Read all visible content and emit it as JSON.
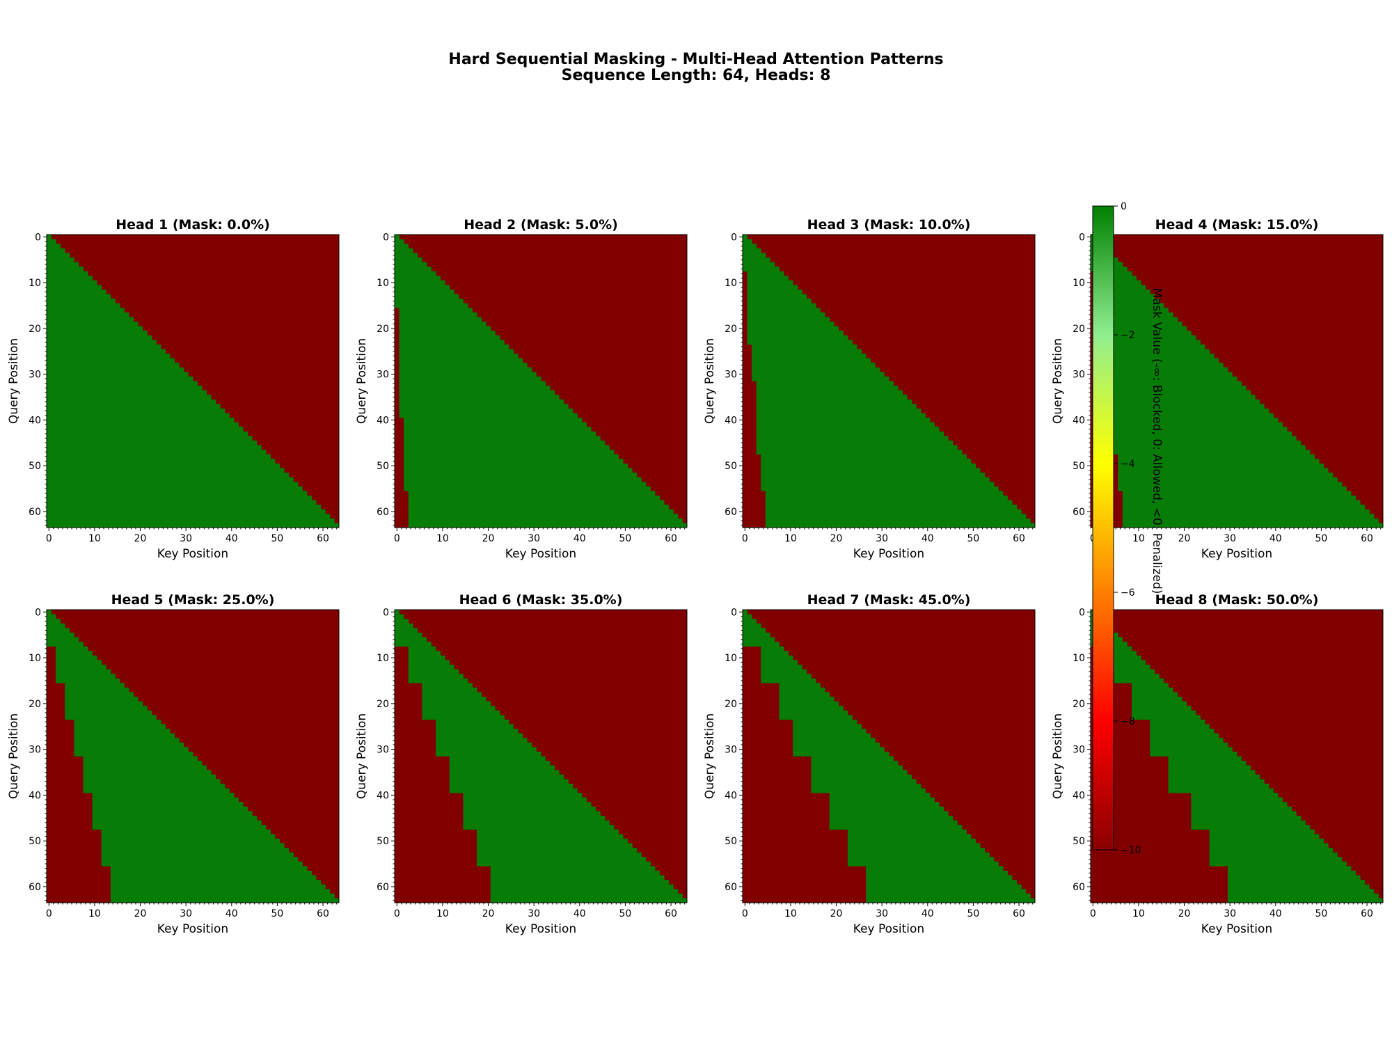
{
  "figure": {
    "title_line1": "Hard Sequential Masking - Multi-Head Attention Patterns",
    "title_line2": "Sequence Length: 64, Heads: 8"
  },
  "colorbar": {
    "label": "Mask Value (-∞: Blocked, 0: Allowed, <0: Penalized)",
    "ticks": [
      0,
      -2,
      -4,
      -6,
      -8,
      -10
    ],
    "tick_labels": [
      "0",
      "−2",
      "−4",
      "−6",
      "−8",
      "−10"
    ],
    "range": [
      -10,
      0
    ],
    "colors": [
      "#8b0000",
      "#ff0000",
      "#ff7f00",
      "#ffff00",
      "#90ee90",
      "#008000"
    ]
  },
  "colors": {
    "allowed": "#077c07",
    "blocked": "#800000"
  },
  "chart_data": {
    "type": "heatmap",
    "seq_len": 64,
    "x_ticks": [
      0,
      10,
      20,
      30,
      40,
      50,
      60
    ],
    "y_ticks": [
      0,
      10,
      20,
      30,
      40,
      50,
      60
    ],
    "xlabel": "Key Position",
    "ylabel": "Query Position",
    "note_on_encoding": "cell (query q, key k) is allowed when k <= q and k >= window_start[block(q)]; blocks of 8 query rows",
    "heads": [
      {
        "title": "Head 1 (Mask: 0.0%)",
        "mask_rate": 0.0,
        "window_start": [
          0,
          0,
          0,
          0,
          0,
          0,
          0,
          0
        ]
      },
      {
        "title": "Head 2 (Mask: 5.0%)",
        "mask_rate": 0.05,
        "window_start": [
          0,
          0,
          1,
          1,
          1,
          2,
          2,
          3
        ]
      },
      {
        "title": "Head 3 (Mask: 10.0%)",
        "mask_rate": 0.1,
        "window_start": [
          0,
          1,
          1,
          2,
          3,
          3,
          4,
          5
        ]
      },
      {
        "title": "Head 4 (Mask: 15.0%)",
        "mask_rate": 0.15,
        "window_start": [
          0,
          1,
          2,
          3,
          4,
          5,
          6,
          7
        ]
      },
      {
        "title": "Head 5 (Mask: 25.0%)",
        "mask_rate": 0.25,
        "window_start": [
          0,
          2,
          4,
          6,
          8,
          10,
          12,
          14
        ]
      },
      {
        "title": "Head 6 (Mask: 35.0%)",
        "mask_rate": 0.35,
        "window_start": [
          0,
          3,
          6,
          9,
          12,
          15,
          18,
          21
        ]
      },
      {
        "title": "Head 7 (Mask: 45.0%)",
        "mask_rate": 0.45,
        "window_start": [
          0,
          4,
          8,
          11,
          15,
          19,
          23,
          27
        ]
      },
      {
        "title": "Head 8 (Mask: 50.0%)",
        "mask_rate": 0.5,
        "window_start": [
          0,
          4,
          9,
          13,
          17,
          22,
          26,
          30
        ]
      }
    ]
  }
}
